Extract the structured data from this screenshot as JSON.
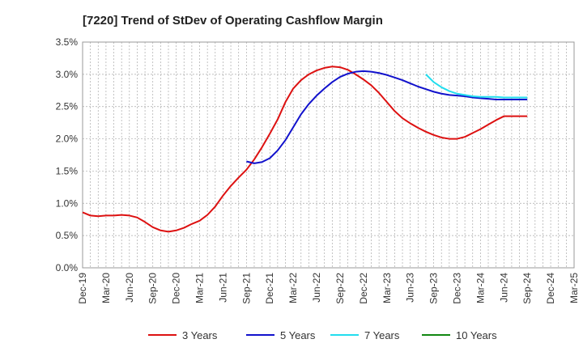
{
  "chart_data": {
    "type": "line",
    "title": "[7220]  Trend of StDev of Operating Cashflow Margin",
    "xlabel": "",
    "ylabel": "",
    "ylim": [
      0,
      3.5
    ],
    "yticks": [
      "0.0%",
      "0.5%",
      "1.0%",
      "1.5%",
      "2.0%",
      "2.5%",
      "3.0%",
      "3.5%"
    ],
    "x_ticks": [
      "Dec-19",
      "Mar-20",
      "Jun-20",
      "Sep-20",
      "Dec-20",
      "Mar-21",
      "Jun-21",
      "Sep-21",
      "Dec-21",
      "Mar-22",
      "Jun-22",
      "Sep-22",
      "Dec-22",
      "Mar-23",
      "Jun-23",
      "Sep-23",
      "Dec-23",
      "Mar-24",
      "Jun-24",
      "Sep-24",
      "Dec-24",
      "Mar-25"
    ],
    "grid": true,
    "legend_position": "bottom",
    "series": [
      {
        "name": "3 Years",
        "color": "#dd1111",
        "x": [
          "Dec-19",
          "Jan-20",
          "Feb-20",
          "Mar-20",
          "Apr-20",
          "May-20",
          "Jun-20",
          "Jul-20",
          "Aug-20",
          "Sep-20",
          "Oct-20",
          "Nov-20",
          "Dec-20",
          "Jan-21",
          "Feb-21",
          "Mar-21",
          "Apr-21",
          "May-21",
          "Jun-21",
          "Jul-21",
          "Aug-21",
          "Sep-21",
          "Oct-21",
          "Nov-21",
          "Dec-21",
          "Jan-22",
          "Feb-22",
          "Mar-22",
          "Apr-22",
          "May-22",
          "Jun-22",
          "Jul-22",
          "Aug-22",
          "Sep-22",
          "Oct-22",
          "Nov-22",
          "Dec-22",
          "Jan-23",
          "Feb-23",
          "Mar-23",
          "Apr-23",
          "May-23",
          "Jun-23",
          "Jul-23",
          "Aug-23",
          "Sep-23",
          "Oct-23",
          "Nov-23",
          "Dec-23",
          "Jan-24",
          "Feb-24",
          "Mar-24",
          "Apr-24",
          "May-24",
          "Jun-24",
          "Jul-24",
          "Aug-24",
          "Sep-24"
        ],
        "values": [
          0.86,
          0.81,
          0.8,
          0.81,
          0.81,
          0.82,
          0.81,
          0.78,
          0.71,
          0.63,
          0.58,
          0.56,
          0.58,
          0.62,
          0.68,
          0.73,
          0.82,
          0.95,
          1.12,
          1.27,
          1.4,
          1.52,
          1.68,
          1.87,
          2.08,
          2.3,
          2.57,
          2.78,
          2.91,
          3.0,
          3.06,
          3.1,
          3.12,
          3.11,
          3.07,
          3.0,
          2.92,
          2.83,
          2.71,
          2.57,
          2.43,
          2.32,
          2.24,
          2.17,
          2.11,
          2.06,
          2.02,
          2.0,
          2.0,
          2.03,
          2.09,
          2.15,
          2.22,
          2.29,
          2.35,
          2.35,
          2.35,
          2.35
        ]
      },
      {
        "name": "5 Years",
        "color": "#1111cc",
        "x": [
          "Sep-21",
          "Oct-21",
          "Nov-21",
          "Dec-21",
          "Jan-22",
          "Feb-22",
          "Mar-22",
          "Apr-22",
          "May-22",
          "Jun-22",
          "Jul-22",
          "Aug-22",
          "Sep-22",
          "Oct-22",
          "Nov-22",
          "Dec-22",
          "Jan-23",
          "Feb-23",
          "Mar-23",
          "Apr-23",
          "May-23",
          "Jun-23",
          "Jul-23",
          "Aug-23",
          "Sep-23",
          "Oct-23",
          "Nov-23",
          "Dec-23",
          "Jan-24",
          "Feb-24",
          "Mar-24",
          "Apr-24",
          "May-24",
          "Jun-24",
          "Jul-24",
          "Aug-24",
          "Sep-24"
        ],
        "values": [
          1.65,
          1.62,
          1.64,
          1.7,
          1.82,
          1.98,
          2.18,
          2.38,
          2.54,
          2.67,
          2.78,
          2.88,
          2.96,
          3.01,
          3.04,
          3.05,
          3.04,
          3.02,
          2.99,
          2.95,
          2.91,
          2.86,
          2.81,
          2.77,
          2.73,
          2.7,
          2.68,
          2.67,
          2.66,
          2.64,
          2.63,
          2.62,
          2.61,
          2.61,
          2.61,
          2.61,
          2.61
        ]
      },
      {
        "name": "7 Years",
        "color": "#22ddee",
        "x": [
          "Aug-23",
          "Sep-23",
          "Oct-23",
          "Nov-23",
          "Dec-23",
          "Jan-24",
          "Feb-24",
          "Mar-24",
          "Apr-24",
          "May-24",
          "Jun-24",
          "Jul-24",
          "Aug-24",
          "Sep-24"
        ],
        "values": [
          3.0,
          2.88,
          2.8,
          2.74,
          2.7,
          2.68,
          2.66,
          2.65,
          2.65,
          2.65,
          2.64,
          2.64,
          2.64,
          2.64
        ]
      },
      {
        "name": "10 Years",
        "color": "#118811",
        "x": [],
        "values": []
      }
    ]
  }
}
